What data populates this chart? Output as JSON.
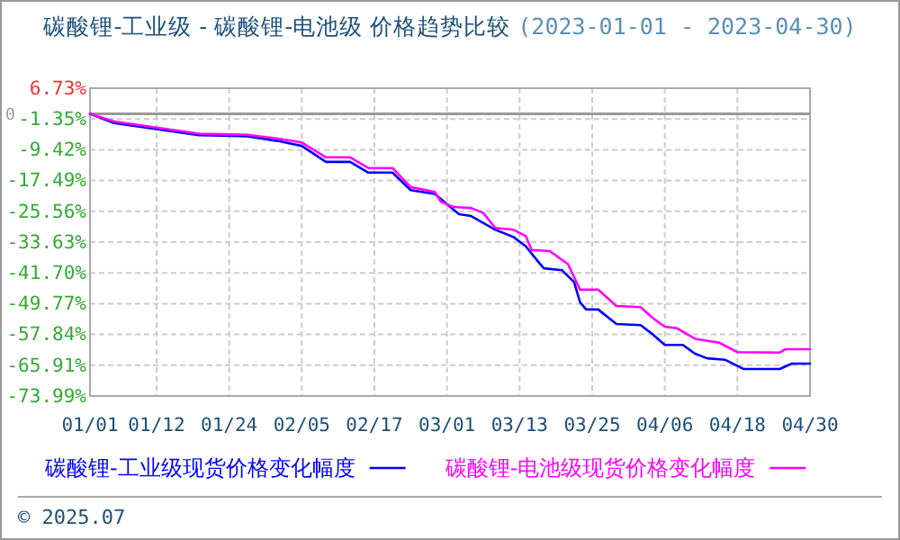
{
  "chart_data": {
    "type": "line",
    "title": "碳酸锂-工业级 - 碳酸锂-电池级 价格趋势比较",
    "subtitle": "(2023-01-01 - 2023-04-30)",
    "series": [
      {
        "name": "碳酸锂-工业级现货价格变化幅度",
        "color": "#0000ff",
        "x": [
          "2023-01-01",
          "2023-01-05",
          "2023-01-12",
          "2023-01-19",
          "2023-01-27",
          "2023-02-01",
          "2023-02-05",
          "2023-02-09",
          "2023-02-13",
          "2023-02-16",
          "2023-02-20",
          "2023-02-23",
          "2023-02-27",
          "2023-03-02",
          "2023-03-03",
          "2023-03-05",
          "2023-03-09",
          "2023-03-12",
          "2023-03-14",
          "2023-03-16",
          "2023-03-17",
          "2023-03-20",
          "2023-03-22",
          "2023-03-23",
          "2023-03-24",
          "2023-03-26",
          "2023-03-29",
          "2023-04-02",
          "2023-04-04",
          "2023-04-06",
          "2023-04-09",
          "2023-04-11",
          "2023-04-13",
          "2023-04-16",
          "2023-04-19",
          "2023-04-25",
          "2023-04-27",
          "2023-04-30"
        ],
        "values": [
          0,
          -2.4,
          -4.0,
          -5.6,
          -5.9,
          -7.1,
          -8.4,
          -12.6,
          -12.6,
          -15.4,
          -15.4,
          -20.0,
          -21.0,
          -25.0,
          -26.3,
          -26.8,
          -30.4,
          -32.3,
          -34.7,
          -38.6,
          -40.5,
          -41.0,
          -44.1,
          -49.4,
          -51.3,
          -51.3,
          -55.1,
          -55.4,
          -57.8,
          -60.6,
          -60.6,
          -62.9,
          -64.1,
          -64.5,
          -66.9,
          -66.9,
          -65.5,
          -65.5
        ]
      },
      {
        "name": "碳酸锂-电池级现货价格变化幅度",
        "color": "#ff00ff",
        "x": [
          "2023-01-01",
          "2023-01-05",
          "2023-01-12",
          "2023-01-19",
          "2023-01-27",
          "2023-02-01",
          "2023-02-05",
          "2023-02-09",
          "2023-02-13",
          "2023-02-16",
          "2023-02-20",
          "2023-02-23",
          "2023-02-27",
          "2023-02-28",
          "2023-03-02",
          "2023-03-05",
          "2023-03-07",
          "2023-03-09",
          "2023-03-12",
          "2023-03-14",
          "2023-03-15",
          "2023-03-18",
          "2023-03-21",
          "2023-03-23",
          "2023-03-26",
          "2023-03-29",
          "2023-04-02",
          "2023-04-04",
          "2023-04-06",
          "2023-04-08",
          "2023-04-11",
          "2023-04-15",
          "2023-04-18",
          "2023-04-25",
          "2023-04-26",
          "2023-04-30"
        ],
        "values": [
          0,
          -2.0,
          -3.6,
          -5.2,
          -5.5,
          -6.5,
          -7.5,
          -11.4,
          -11.4,
          -14.2,
          -14.2,
          -19.2,
          -20.5,
          -23.0,
          -24.4,
          -24.7,
          -26.0,
          -29.9,
          -30.4,
          -32.0,
          -35.7,
          -36.0,
          -39.4,
          -46.1,
          -46.1,
          -50.4,
          -50.7,
          -53.5,
          -55.8,
          -56.2,
          -59.0,
          -60.0,
          -62.5,
          -62.6,
          -61.7,
          -61.7
        ]
      }
    ],
    "xlim": [
      "2023-01-01",
      "2023-04-30"
    ],
    "xticks": [
      {
        "value": "2023-01-01",
        "label": "01/01"
      },
      {
        "value": "2023-01-12",
        "label": "01/12"
      },
      {
        "value": "2023-01-24",
        "label": "01/24"
      },
      {
        "value": "2023-02-05",
        "label": "02/05"
      },
      {
        "value": "2023-02-17",
        "label": "02/17"
      },
      {
        "value": "2023-03-01",
        "label": "03/01"
      },
      {
        "value": "2023-03-13",
        "label": "03/13"
      },
      {
        "value": "2023-03-25",
        "label": "03/25"
      },
      {
        "value": "2023-04-06",
        "label": "04/06"
      },
      {
        "value": "2023-04-18",
        "label": "04/18"
      },
      {
        "value": "2023-04-30",
        "label": "04/30"
      }
    ],
    "ylim": [
      -73.99,
      6.73
    ],
    "yticks": [
      {
        "value": 6.73,
        "label": "6.73%"
      },
      {
        "value": -1.35,
        "label": "-1.35%"
      },
      {
        "value": -9.42,
        "label": "-9.42%"
      },
      {
        "value": -17.49,
        "label": "-17.49%"
      },
      {
        "value": -25.56,
        "label": "-25.56%"
      },
      {
        "value": -33.63,
        "label": "-33.63%"
      },
      {
        "value": -41.7,
        "label": "-41.70%"
      },
      {
        "value": -49.77,
        "label": "-49.77%"
      },
      {
        "value": -57.84,
        "label": "-57.84%"
      },
      {
        "value": -65.91,
        "label": "-65.91%"
      },
      {
        "value": -73.99,
        "label": "-73.99%"
      }
    ],
    "grid": true,
    "legend": "bottom",
    "ref_lines": [
      {
        "axis": "y",
        "value": 0,
        "label": "0"
      }
    ],
    "annotations": [
      "© 2025.07"
    ]
  }
}
